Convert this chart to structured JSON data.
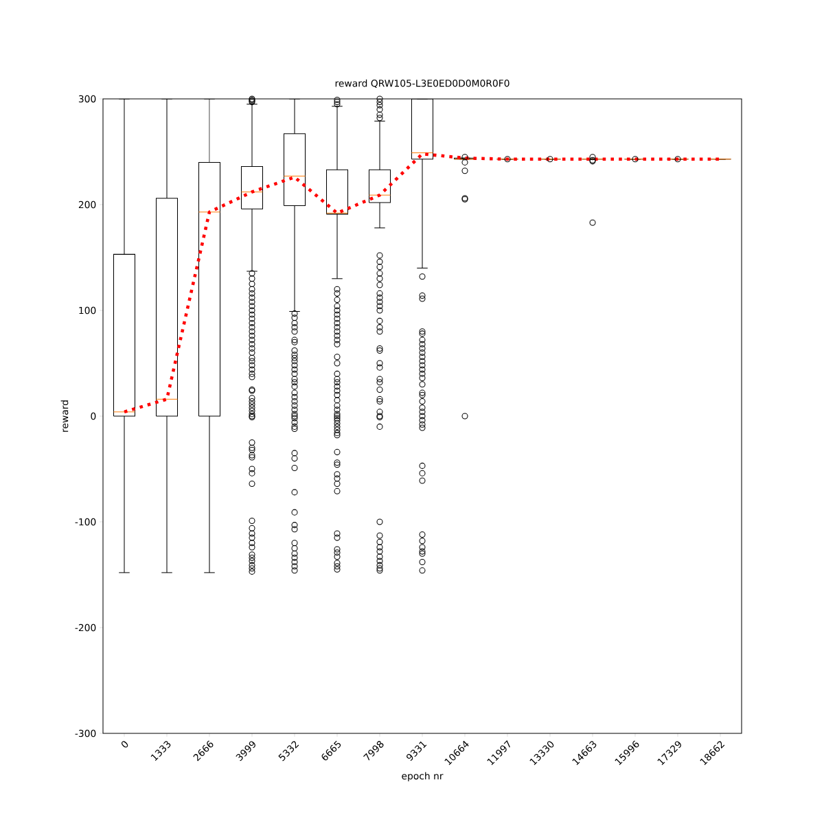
{
  "chart_data": {
    "type": "box",
    "title": "reward QRW105-L3E0ED0D0M0R0F0",
    "xlabel": "epoch nr",
    "ylabel": "reward",
    "categories": [
      "0",
      "1333",
      "2666",
      "3999",
      "5332",
      "6665",
      "7998",
      "9331",
      "10664",
      "11997",
      "13330",
      "14663",
      "15996",
      "17329",
      "18662"
    ],
    "ylim": [
      -300,
      300
    ],
    "yticks": [
      -300,
      -200,
      -100,
      0,
      100,
      200,
      300
    ],
    "series": [
      {
        "color": "#000000",
        "boxes": [
          {
            "low": -148,
            "q1": 0,
            "median": 4,
            "q3": 153,
            "high": 300
          },
          {
            "low": -148,
            "q1": 0,
            "median": 16,
            "q3": 206,
            "high": 300
          },
          {
            "low": -148,
            "q1": 0,
            "median": 193,
            "q3": 240,
            "high": 300
          },
          {
            "low": 137,
            "q1": 196,
            "median": 212,
            "q3": 236,
            "high": 295,
            "outliers": [
              297,
              298,
              299,
              300,
              135,
              130,
              125,
              120,
              116,
              112,
              108,
              104,
              100,
              96,
              92,
              88,
              84,
              80,
              76,
              72,
              68,
              64,
              60,
              55,
              52,
              48,
              44,
              40,
              37,
              25,
              24,
              17,
              14,
              11,
              8,
              5,
              2,
              0,
              -1,
              -25,
              -30,
              -32,
              -37,
              -39,
              -50,
              -54,
              -64,
              -99,
              -106,
              -111,
              -115,
              -120,
              -124,
              -131,
              -134,
              -137,
              -141,
              -144,
              -147
            ]
          },
          {
            "low": 99,
            "q1": 199,
            "median": 227,
            "q3": 267,
            "high": 300,
            "outliers": [
              97,
              93,
              88,
              84,
              80,
              72,
              70,
              62,
              58,
              55,
              52,
              48,
              44,
              40,
              35,
              32,
              28,
              22,
              18,
              14,
              10,
              6,
              2,
              0,
              -2,
              -6,
              -10,
              -12,
              -35,
              -40,
              -49,
              -72,
              -91,
              -103,
              -107,
              -120,
              -125,
              -130,
              -134,
              -138,
              -142,
              -146
            ]
          },
          {
            "low": 130,
            "q1": 191,
            "median": 192,
            "q3": 233,
            "high": 293,
            "outliers": [
              295,
              297,
              299,
              120,
              116,
              110,
              104,
              100,
              96,
              92,
              88,
              84,
              80,
              76,
              72,
              68,
              56,
              50,
              40,
              35,
              32,
              28,
              24,
              20,
              15,
              10,
              6,
              2,
              0,
              -2,
              -4,
              -7,
              -10,
              -13,
              -16,
              -18,
              -34,
              -44,
              -46,
              -55,
              -59,
              -64,
              -71,
              -111,
              -115,
              -126,
              -129,
              -133,
              -139,
              -142,
              -145
            ]
          },
          {
            "low": 178,
            "q1": 202,
            "median": 209,
            "q3": 233,
            "high": 279,
            "outliers": [
              282,
              285,
              290,
              294,
              297,
              300,
              152,
              146,
              141,
              135,
              130,
              124,
              116,
              112,
              108,
              104,
              100,
              90,
              84,
              80,
              64,
              62,
              50,
              46,
              35,
              32,
              25,
              16,
              14,
              4,
              0,
              -1,
              -10,
              -100,
              -113,
              -119,
              -124,
              -128,
              -133,
              -137,
              -141,
              -144,
              -146
            ]
          },
          {
            "low": 140,
            "q1": 243,
            "median": 249,
            "q3": 300,
            "high": 300,
            "outliers": [
              132,
              114,
              111,
              80,
              78,
              72,
              68,
              64,
              60,
              56,
              52,
              48,
              44,
              40,
              36,
              30,
              22,
              20,
              14,
              8,
              4,
              0,
              -4,
              -8,
              -11,
              -47,
              -54,
              -61,
              -112,
              -118,
              -124,
              -128,
              -130,
              -138,
              -146
            ]
          },
          {
            "low": 243,
            "q1": 243,
            "median": 243,
            "q3": 244,
            "high": 244,
            "outliers": [
              245,
              240,
              232,
              206,
              205,
              0
            ]
          },
          {
            "low": 243,
            "q1": 243,
            "median": 243,
            "q3": 243,
            "high": 243,
            "outliers": [
              243
            ]
          },
          {
            "low": 243,
            "q1": 243,
            "median": 243,
            "q3": 243,
            "high": 243,
            "outliers": [
              243
            ]
          },
          {
            "low": 243,
            "q1": 243,
            "median": 243,
            "q3": 243,
            "high": 243,
            "outliers": [
              245,
              242,
              241,
              183
            ]
          },
          {
            "low": 243,
            "q1": 243,
            "median": 243,
            "q3": 243,
            "high": 243,
            "outliers": [
              243
            ]
          },
          {
            "low": 243,
            "q1": 243,
            "median": 243,
            "q3": 243,
            "high": 243,
            "outliers": [
              243
            ]
          },
          {
            "low": 243,
            "q1": 243,
            "median": 243,
            "q3": 243,
            "high": 243
          }
        ]
      },
      {
        "type": "line",
        "color": "#ff0000",
        "line_style": "dotted",
        "marker": "none",
        "values": [
          4,
          16,
          193,
          212,
          226,
          192,
          209,
          248,
          244,
          243,
          243,
          243,
          243,
          243,
          243
        ]
      }
    ]
  }
}
